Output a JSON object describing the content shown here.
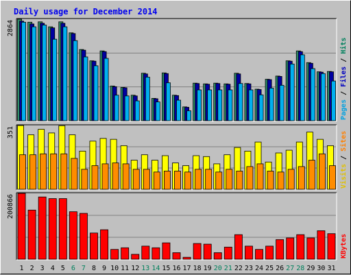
{
  "chart_data": {
    "type": "bar",
    "title": "Daily usage for December 2014",
    "categories": [
      "1",
      "2",
      "3",
      "4",
      "5",
      "6",
      "7",
      "8",
      "9",
      "10",
      "11",
      "12",
      "13",
      "14",
      "15",
      "16",
      "17",
      "18",
      "19",
      "20",
      "21",
      "22",
      "23",
      "24",
      "25",
      "26",
      "27",
      "28",
      "29",
      "30",
      "31"
    ],
    "weekend_days": [
      "6",
      "7",
      "13",
      "14",
      "20",
      "21",
      "27",
      "28"
    ],
    "panels": [
      {
        "id": "pages_files_hits",
        "max_label": "2864",
        "ylim": [
          0,
          2864
        ],
        "legend": [
          {
            "name": "Pages",
            "color": "#00a0e0"
          },
          {
            "name": "Files",
            "color": "#0000c0"
          },
          {
            "name": "Hits",
            "color": "#00805c"
          }
        ],
        "series": [
          {
            "name": "Hits",
            "color": "#2f8f6a",
            "values": [
              2864,
              2780,
              2790,
              2650,
              2790,
              2480,
              2010,
              1690,
              1970,
              980,
              940,
              720,
              1340,
              630,
              1350,
              720,
              390,
              1060,
              1040,
              1060,
              1040,
              1340,
              1050,
              890,
              1170,
              1260,
              1690,
              1970,
              1640,
              1380,
              1390
            ]
          },
          {
            "name": "Files",
            "color": "#0000a0",
            "values": [
              2810,
              2730,
              2750,
              2620,
              2750,
              2460,
              1990,
              1680,
              1950,
              960,
              930,
              700,
              1320,
              620,
              1330,
              710,
              380,
              1050,
              1030,
              1050,
              1030,
              1320,
              1040,
              880,
              1160,
              1250,
              1680,
              1950,
              1620,
              1370,
              1380
            ]
          },
          {
            "name": "Pages",
            "color": "#00b0f0",
            "values": [
              2780,
              2650,
              2700,
              2300,
              2650,
              2260,
              1800,
              1550,
              1760,
              720,
              700,
              560,
              1230,
              530,
              1070,
              580,
              280,
              870,
              870,
              870,
              870,
              1050,
              870,
              730,
              920,
              1000,
              1600,
              1860,
              1470,
              1330,
              1120
            ]
          }
        ]
      },
      {
        "id": "visits_sites",
        "max_label": "351",
        "ylim": [
          0,
          351
        ],
        "legend": [
          {
            "name": "Visits",
            "color": "#e0c000"
          },
          {
            "name": "Sites",
            "color": "#ff8000"
          }
        ],
        "series": [
          {
            "name": "Visits",
            "color": "#ffff00",
            "values": [
              351,
              300,
              330,
              310,
              350,
              300,
              210,
              265,
              280,
              275,
              240,
              160,
              190,
              160,
              185,
              145,
              130,
              185,
              180,
              140,
              190,
              230,
              210,
              260,
              150,
              200,
              215,
              260,
              315,
              275,
              240
            ]
          },
          {
            "name": "Sites",
            "color": "#ff8c00",
            "values": [
              190,
              190,
              195,
              195,
              195,
              170,
              110,
              130,
              140,
              145,
              140,
              110,
              110,
              95,
              100,
              100,
              95,
              110,
              110,
              95,
              110,
              100,
              125,
              140,
              100,
              95,
              110,
              125,
              160,
              195,
              130
            ]
          }
        ]
      },
      {
        "id": "kbytes",
        "max_label": "200866",
        "ylim": [
          0,
          200866
        ],
        "legend": [
          {
            "name": "KBytes",
            "color": "#ff0000"
          }
        ],
        "series": [
          {
            "name": "KBytes",
            "color": "#ff0000",
            "values": [
              200866,
              150000,
              190000,
              185000,
              185000,
              145000,
              140000,
              80000,
              90000,
              30000,
              35000,
              15000,
              40000,
              35000,
              50000,
              20000,
              6000,
              48000,
              46000,
              20000,
              37000,
              75000,
              40000,
              30000,
              40000,
              60000,
              65000,
              75000,
              65000,
              87000,
              78000
            ]
          }
        ]
      }
    ]
  }
}
